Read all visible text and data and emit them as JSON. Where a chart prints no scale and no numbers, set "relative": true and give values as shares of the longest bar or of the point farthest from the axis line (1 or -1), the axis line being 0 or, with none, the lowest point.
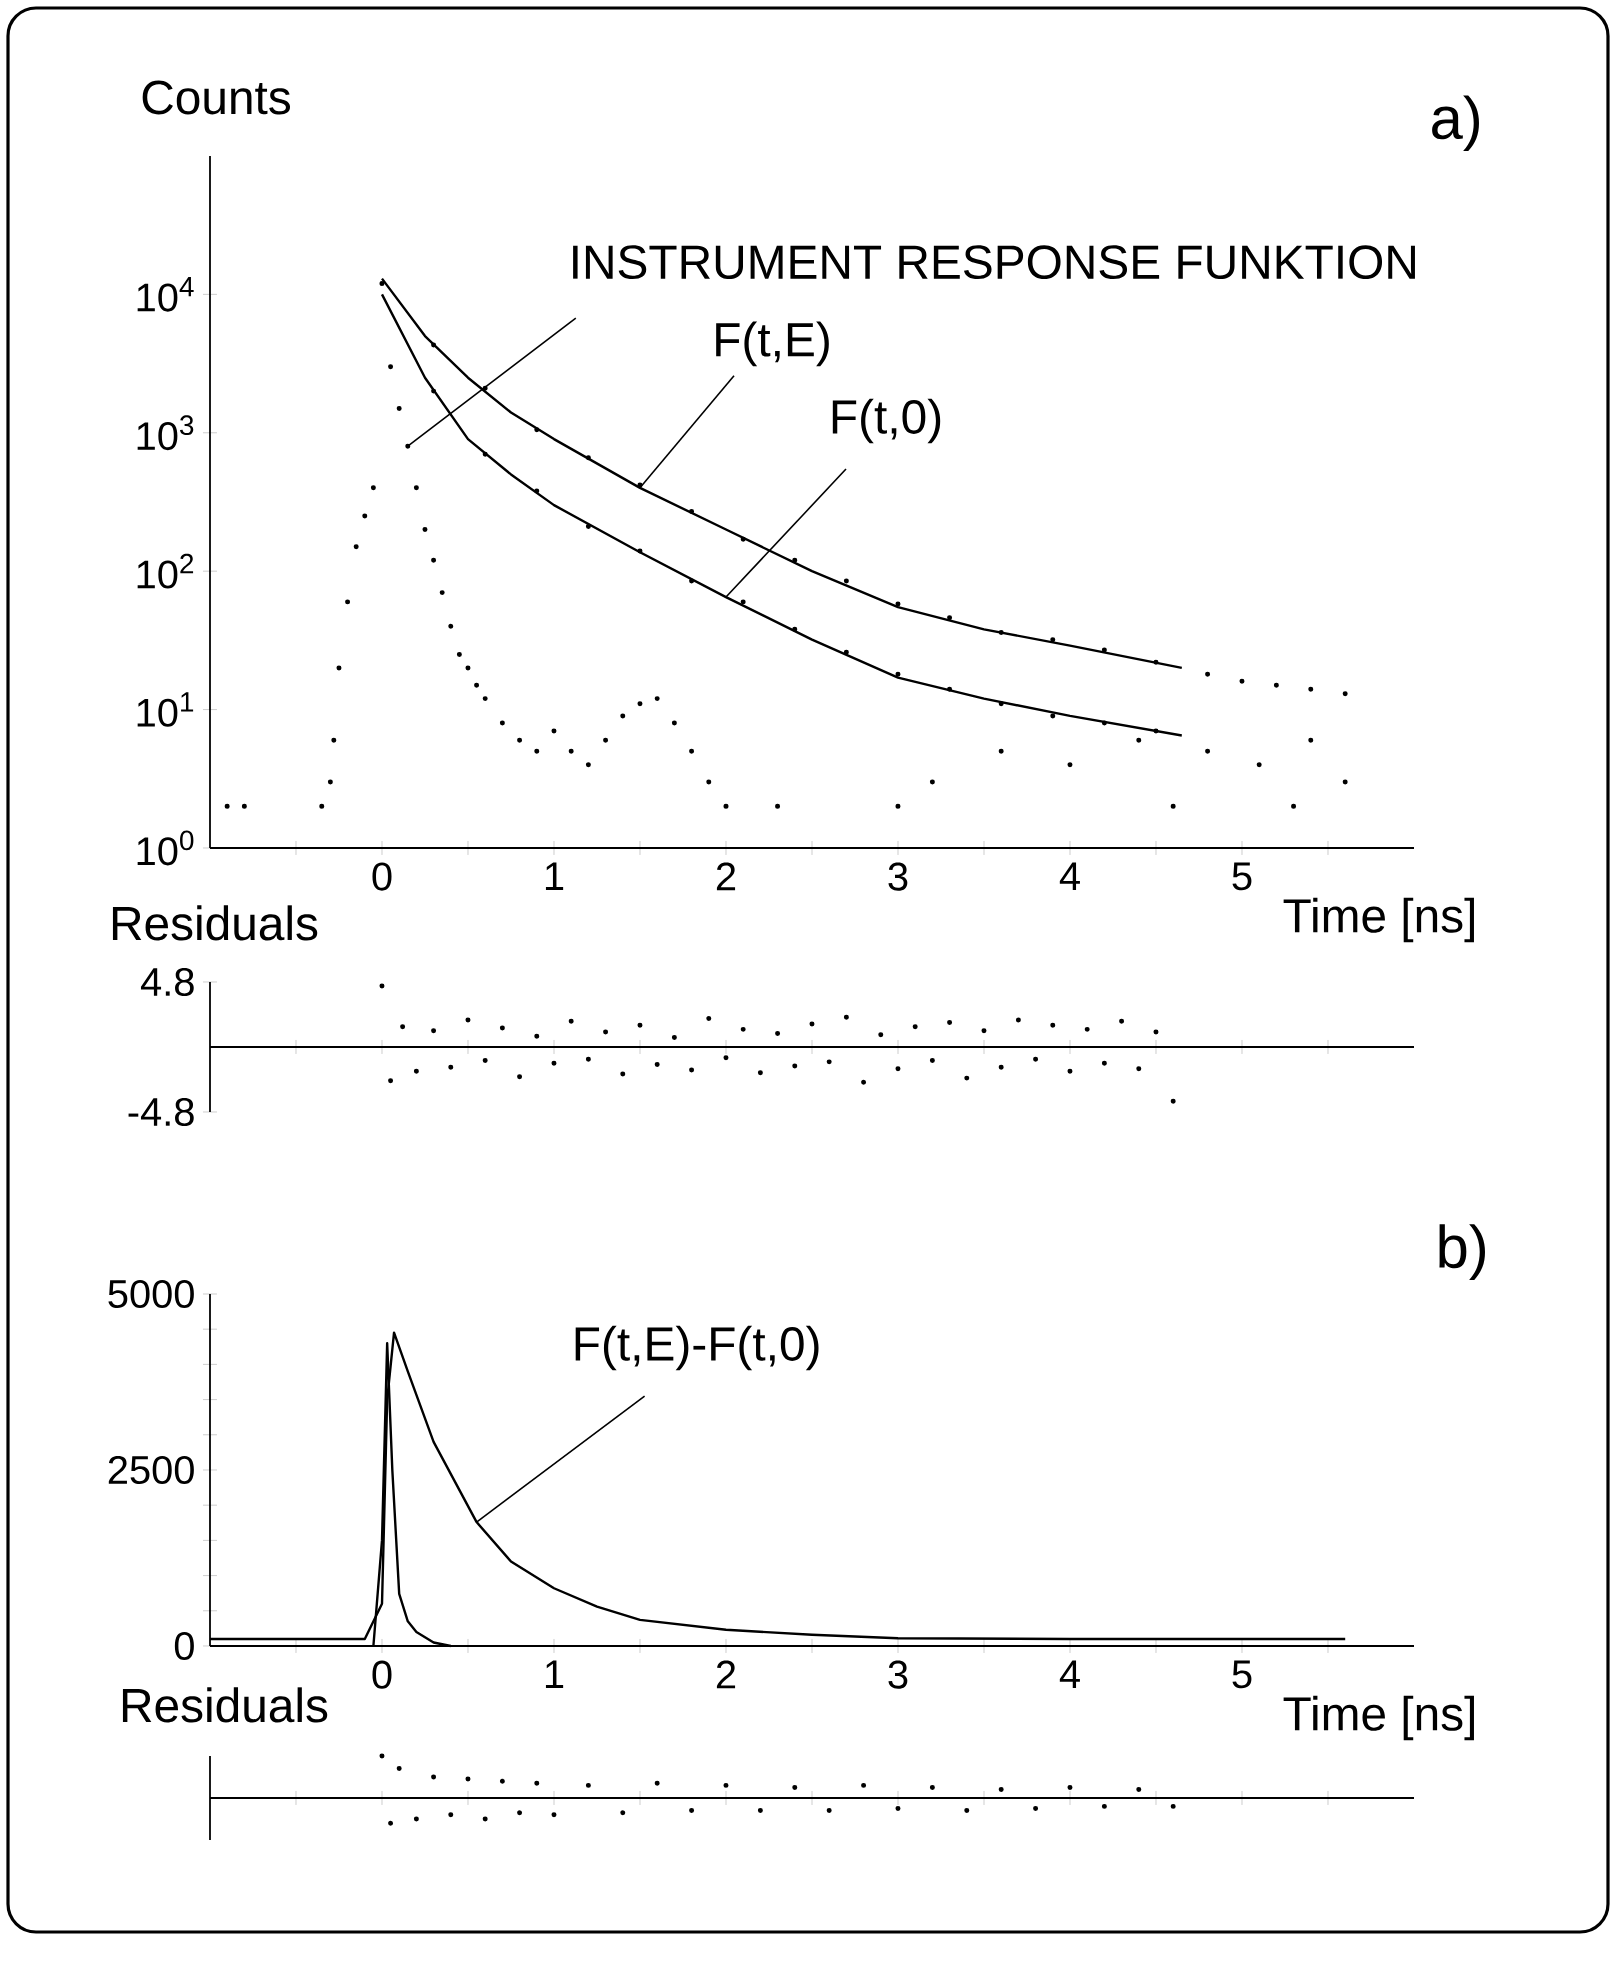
{
  "chart_data": [
    {
      "type": "line",
      "title": "a)",
      "xlabel": "Time [ns]",
      "ylabel": "Counts",
      "log": "y",
      "xlim": [
        -1,
        6
      ],
      "ylim": [
        1,
        100000
      ],
      "xticks": [
        {
          "value": -0.5,
          "label": null
        },
        0,
        {
          "value": 0.5,
          "label": null
        },
        1,
        {
          "value": 1.5,
          "label": null
        },
        2,
        {
          "value": 2.5,
          "label": null
        },
        3,
        {
          "value": 3.5,
          "label": null
        },
        4,
        {
          "value": 4.5,
          "label": null
        },
        5,
        {
          "value": 5.5,
          "label": null
        }
      ],
      "yticks": [
        {
          "value": 1,
          "label": "10$^{0}$"
        },
        {
          "value": 10,
          "label": "10$^{1}$"
        },
        {
          "value": 100,
          "label": "10$^{2}$"
        },
        {
          "value": 1000,
          "label": "10$^{3}$"
        },
        {
          "value": 10000,
          "label": "10$^{4}$"
        }
      ],
      "series": [
        {
          "name": "INSTRUMENT RESPONSE FUNKTION",
          "type": "scatter",
          "marker": "circle",
          "color": "#000000",
          "x": [
            -0.9,
            -0.8,
            -0.35,
            -0.3,
            -0.28,
            -0.25,
            -0.2,
            -0.15,
            -0.1,
            -0.05,
            0,
            0.05,
            0.1,
            0.15,
            0.2,
            0.25,
            0.3,
            0.35,
            0.4,
            0.45,
            0.5,
            0.55,
            0.6,
            0.7,
            0.8,
            0.9,
            1.0,
            1.1,
            1.2,
            1.3,
            1.4,
            1.5,
            1.6,
            1.7,
            1.8,
            1.9,
            2.0,
            2.3
          ],
          "values": [
            2,
            2,
            2,
            3,
            6,
            20,
            60,
            150,
            250,
            400,
            12000,
            3000,
            1500,
            800,
            400,
            200,
            120,
            70,
            40,
            25,
            20,
            15,
            12,
            8,
            6,
            5,
            7,
            5,
            4,
            6,
            9,
            11,
            12,
            8,
            5,
            3,
            2,
            2
          ]
        },
        {
          "name": "F(t,E)",
          "type": "line",
          "color": "#000000",
          "x": [
            0,
            0.25,
            0.5,
            0.75,
            1,
            1.5,
            2,
            2.5,
            3,
            3.5,
            4,
            4.65
          ],
          "values": [
            13000,
            5000,
            2500,
            1400,
            900,
            400,
            200,
            100,
            55,
            38,
            29,
            20
          ]
        },
        {
          "name": "F(t,0)",
          "type": "line",
          "color": "#000000",
          "x": [
            0,
            0.25,
            0.5,
            0.75,
            1,
            1.5,
            2,
            2.5,
            3,
            3.5,
            4,
            4.65
          ],
          "values": [
            10000,
            2500,
            900,
            500,
            300,
            137,
            65,
            32,
            17,
            12,
            9,
            6.5
          ]
        },
        {
          "type": "scatter",
          "marker": "circle",
          "color": "#000000",
          "x": [
            0.3,
            0.6,
            0.9,
            1.2,
            1.5,
            1.8,
            2.1,
            2.4,
            2.7,
            3.0,
            3.3,
            3.6,
            3.9,
            4.2,
            4.5,
            4.8,
            5.0,
            5.2,
            5.4,
            5.6
          ],
          "values": [
            4300,
            2100,
            1050,
            660,
            420,
            270,
            170,
            120,
            85,
            58,
            46,
            36,
            32,
            27,
            22,
            18,
            16,
            15,
            14,
            13
          ]
        },
        {
          "type": "scatter",
          "marker": "circle",
          "color": "#000000",
          "x": [
            0.3,
            0.6,
            0.9,
            1.2,
            1.5,
            1.8,
            2.1,
            2.4,
            2.7,
            3.0,
            3.3,
            3.6,
            3.9,
            4.2,
            4.5,
            3.2,
            3.6,
            4.0,
            4.4,
            4.8,
            5.1,
            5.4,
            5.6,
            3.0,
            4.6,
            5.3
          ],
          "values": [
            2000,
            700,
            380,
            210,
            140,
            85,
            60,
            38,
            26,
            18,
            14,
            11,
            9,
            8,
            7,
            3,
            5,
            4,
            6,
            5,
            4,
            6,
            3,
            2,
            2,
            2
          ]
        }
      ]
    },
    {
      "type": "scatter",
      "ylabel": "Residuals",
      "tick_labels": "y",
      "marker": "circle",
      "color": "#000000",
      "xlim": [
        -1,
        6
      ],
      "ylim": [
        -4.8,
        4.8
      ],
      "yticks": [
        -4.8,
        4.8
      ],
      "xticks": [
        {
          "value": -0.5,
          "label": null
        },
        {
          "value": 0,
          "label": null
        },
        {
          "value": 0.5,
          "label": null
        },
        {
          "value": 1,
          "label": null
        },
        {
          "value": 1.5,
          "label": null
        },
        {
          "value": 2,
          "label": null
        },
        {
          "value": 2.5,
          "label": null
        },
        {
          "value": 3,
          "label": null
        },
        {
          "value": 3.5,
          "label": null
        },
        {
          "value": 4,
          "label": null
        },
        {
          "value": 4.5,
          "label": null
        },
        {
          "value": 5,
          "label": null
        },
        {
          "value": 5.5,
          "label": null
        }
      ],
      "x": [
        0.0,
        0.05,
        0.12,
        0.2,
        0.3,
        0.4,
        0.5,
        0.6,
        0.7,
        0.8,
        0.9,
        1.0,
        1.1,
        1.2,
        1.3,
        1.4,
        1.5,
        1.6,
        1.7,
        1.8,
        1.9,
        2.0,
        2.1,
        2.2,
        2.3,
        2.4,
        2.5,
        2.6,
        2.7,
        2.8,
        2.9,
        3.0,
        3.1,
        3.2,
        3.3,
        3.4,
        3.5,
        3.6,
        3.7,
        3.8,
        3.9,
        4.0,
        4.1,
        4.2,
        4.3,
        4.4,
        4.5,
        4.6
      ],
      "values": [
        4.5,
        -2.5,
        1.5,
        -1.8,
        1.2,
        -1.5,
        2.0,
        -1.0,
        1.4,
        -2.2,
        0.8,
        -1.2,
        1.9,
        -0.9,
        1.1,
        -2.0,
        1.6,
        -1.3,
        0.7,
        -1.7,
        2.1,
        -0.8,
        1.3,
        -1.9,
        1.0,
        -1.4,
        1.7,
        -1.1,
        2.2,
        -2.6,
        0.9,
        -1.6,
        1.5,
        -1.0,
        1.8,
        -2.3,
        1.2,
        -1.5,
        2.0,
        -0.9,
        1.6,
        -1.8,
        1.3,
        -1.2,
        1.9,
        -1.6,
        1.1,
        -4.0
      ]
    },
    {
      "type": "line",
      "title": "b)",
      "xlabel": "Time [ns]",
      "xlim": [
        -1,
        6
      ],
      "ylim": [
        0,
        5000
      ],
      "xticks": [
        {
          "value": -0.5,
          "label": null
        },
        0,
        {
          "value": 0.5,
          "label": null
        },
        1,
        {
          "value": 1.5,
          "label": null
        },
        2,
        {
          "value": 2.5,
          "label": null
        },
        3,
        {
          "value": 3.5,
          "label": null
        },
        4,
        {
          "value": 4.5,
          "label": null
        },
        5,
        {
          "value": 5.5,
          "label": null
        }
      ],
      "yticks": [
        0,
        {
          "value": 500,
          "label": null
        },
        {
          "value": 1000,
          "label": null
        },
        {
          "value": 1500,
          "label": null
        },
        {
          "value": 2000,
          "label": null
        },
        2500,
        {
          "value": 3000,
          "label": null
        },
        {
          "value": 3500,
          "label": null
        },
        {
          "value": 4000,
          "label": null
        },
        {
          "value": 4500,
          "label": null
        },
        5000
      ],
      "series": [
        {
          "name": "F(t,E)-F(t,0)",
          "color": "#000000",
          "x": [
            -1,
            -0.1,
            0,
            0.03,
            0.07,
            0.15,
            0.3,
            0.55,
            0.75,
            1,
            1.25,
            1.5,
            2,
            2.5,
            3,
            4,
            5,
            5.6
          ],
          "values": [
            100,
            100,
            600,
            3500,
            4450,
            3900,
            2900,
            1760,
            1200,
            820,
            560,
            370,
            230,
            160,
            110,
            100,
            100,
            100
          ]
        },
        {
          "color": "#000000",
          "x": [
            -0.05,
            0,
            0.03,
            0.06,
            0.1,
            0.15,
            0.2,
            0.3,
            0.4
          ],
          "values": [
            0,
            1500,
            4300,
            2500,
            740,
            350,
            200,
            50,
            0
          ]
        }
      ]
    },
    {
      "type": "scatter",
      "ylabel": "Residuals",
      "tick_labels": false,
      "relative": true,
      "marker": "circle",
      "color": "#000000",
      "xlim": [
        -1,
        6
      ],
      "xticks": [
        {
          "value": -0.5,
          "label": null
        },
        {
          "value": 0,
          "label": null
        },
        {
          "value": 0.5,
          "label": null
        },
        {
          "value": 1,
          "label": null
        },
        {
          "value": 1.5,
          "label": null
        },
        {
          "value": 2,
          "label": null
        },
        {
          "value": 2.5,
          "label": null
        },
        {
          "value": 3,
          "label": null
        },
        {
          "value": 3.5,
          "label": null
        },
        {
          "value": 4,
          "label": null
        },
        {
          "value": 4.5,
          "label": null
        },
        {
          "value": 5,
          "label": null
        },
        {
          "value": 5.5,
          "label": null
        }
      ],
      "x": [
        0.0,
        0.05,
        0.1,
        0.2,
        0.3,
        0.4,
        0.5,
        0.6,
        0.7,
        0.8,
        0.9,
        1.0,
        1.2,
        1.4,
        1.6,
        1.8,
        2.0,
        2.2,
        2.4,
        2.6,
        2.8,
        3.0,
        3.2,
        3.4,
        3.6,
        3.8,
        4.0,
        4.2,
        4.4,
        4.6
      ],
      "values": [
        1.0,
        -0.6,
        0.7,
        -0.5,
        0.5,
        -0.4,
        0.45,
        -0.5,
        0.4,
        -0.35,
        0.35,
        -0.4,
        0.3,
        -0.35,
        0.35,
        -0.3,
        0.3,
        -0.3,
        0.25,
        -0.3,
        0.3,
        -0.25,
        0.25,
        -0.3,
        0.2,
        -0.25,
        0.25,
        -0.2,
        0.2,
        -0.2
      ]
    }
  ]
}
